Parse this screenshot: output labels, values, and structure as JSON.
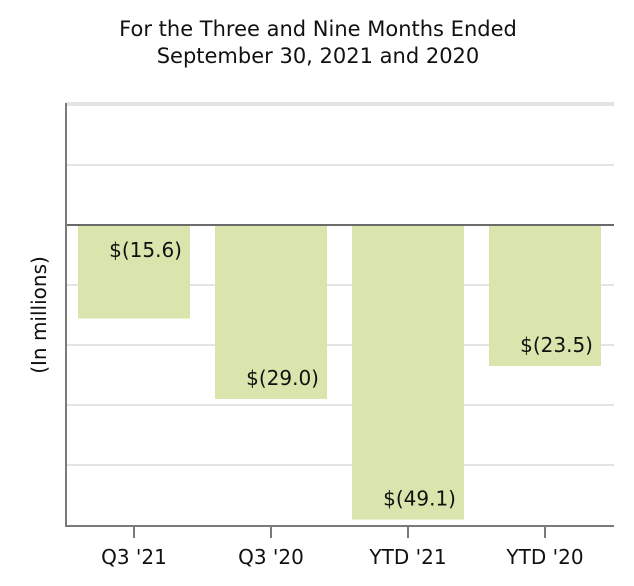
{
  "chart_data": {
    "type": "bar",
    "title": [
      "For the Three and Nine Months Ended",
      "September 30, 2021 and 2020"
    ],
    "xlabel": "",
    "ylabel": "(In millions)",
    "categories": [
      "Q3 '21",
      "Q3 '20",
      "YTD '21",
      "YTD '20"
    ],
    "values": [
      -15.6,
      -29.0,
      -49.1,
      -23.5
    ],
    "data_labels": [
      "$(15.6)",
      "$(29.0)",
      "$(49.1)",
      "$(23.5)"
    ],
    "ylim": [
      -50,
      20
    ],
    "y_gridlines": [
      20,
      10,
      0,
      -10,
      -20,
      -30,
      -40
    ],
    "ytick_labels_shown": false,
    "grid": true,
    "legend": "none",
    "colors": {
      "bar": "#d9e5ad",
      "grid": "#e4e4e4",
      "zero_line": "#6b6b6b",
      "axis": "#7a7a7a"
    }
  }
}
